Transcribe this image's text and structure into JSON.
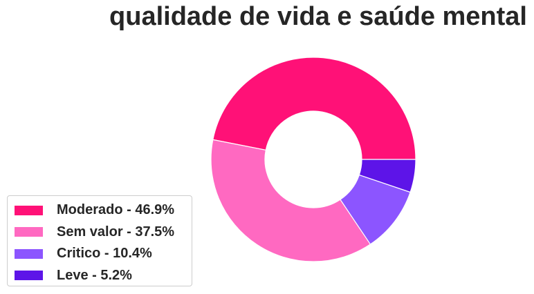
{
  "chart_data": {
    "type": "pie",
    "donut": true,
    "title": "qualidade de vida e saúde mental",
    "legend_position": "lower-left",
    "grid": false,
    "slices": [
      {
        "label": "Moderado - 46.9%",
        "value": 46.9,
        "color": "#ff1177"
      },
      {
        "label": "Sem valor - 37.5%",
        "value": 37.5,
        "color": "#ff69c1"
      },
      {
        "label": "Critico - 10.4%",
        "value": 10.4,
        "color": "#8c55ff"
      },
      {
        "label": "Leve - 5.2%",
        "value": 5.2,
        "color": "#5d14e8"
      }
    ]
  }
}
